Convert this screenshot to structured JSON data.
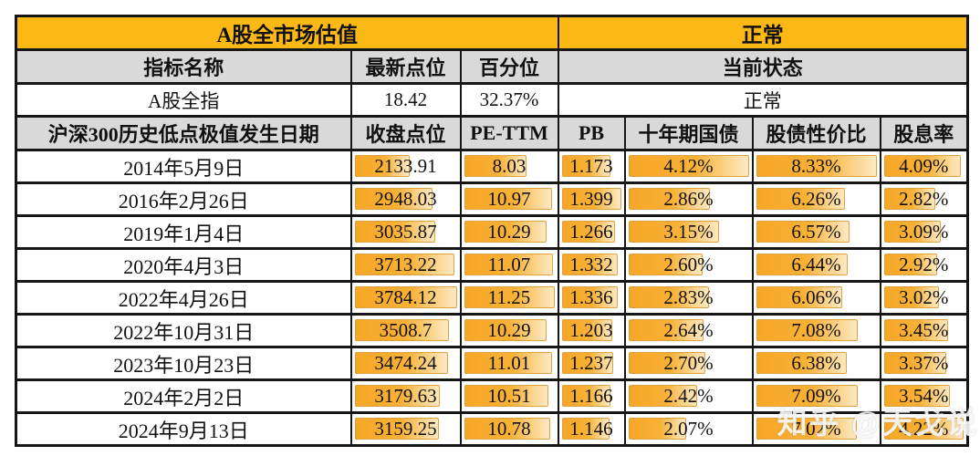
{
  "colors": {
    "header_orange": "#FCB814",
    "header_gray": "#D9D9D9",
    "bar_fill_start": "#F6A626",
    "bar_fill_end": "#FDE9C2",
    "bar_border": "#DFA042",
    "grid": "#161616"
  },
  "watermark": "知乎 @天戈说",
  "chart_data": {
    "type": "table",
    "title_row": {
      "left": "A股全市场估值",
      "right": "正常"
    },
    "meta_header": [
      "指标名称",
      "最新点位",
      "百分位",
      "当前状态"
    ],
    "meta_row": [
      "A股全指",
      "18.42",
      "32.37%",
      "正常"
    ],
    "columns": [
      "沪深300历史低点极值发生日期",
      "收盘点位",
      "PE-TTM",
      "PB",
      "十年期国债",
      "股债性价比",
      "股息率"
    ],
    "bar_scaling": "bar width = value / column max",
    "rows": [
      {
        "date": "2014年5月9日",
        "display": [
          "2133.91",
          "8.03",
          "1.173",
          "4.12%",
          "8.33%",
          "4.09%"
        ],
        "values": [
          2133.91,
          8.03,
          1.173,
          4.12,
          8.33,
          4.09
        ]
      },
      {
        "date": "2016年2月26日",
        "display": [
          "2948.03",
          "10.97",
          "1.399",
          "2.86%",
          "6.26%",
          "2.82%"
        ],
        "values": [
          2948.03,
          10.97,
          1.399,
          2.86,
          6.26,
          2.82
        ]
      },
      {
        "date": "2019年1月4日",
        "display": [
          "3035.87",
          "10.29",
          "1.266",
          "3.15%",
          "6.57%",
          "3.09%"
        ],
        "values": [
          3035.87,
          10.29,
          1.266,
          3.15,
          6.57,
          3.09
        ]
      },
      {
        "date": "2020年4月3日",
        "display": [
          "3713.22",
          "11.07",
          "1.332",
          "2.60%",
          "6.44%",
          "2.92%"
        ],
        "values": [
          3713.22,
          11.07,
          1.332,
          2.6,
          6.44,
          2.92
        ]
      },
      {
        "date": "2022年4月26日",
        "display": [
          "3784.12",
          "11.25",
          "1.336",
          "2.83%",
          "6.06%",
          "3.02%"
        ],
        "values": [
          3784.12,
          11.25,
          1.336,
          2.83,
          6.06,
          3.02
        ]
      },
      {
        "date": "2022年10月31日",
        "display": [
          "3508.7",
          "10.29",
          "1.203",
          "2.64%",
          "7.08%",
          "3.45%"
        ],
        "values": [
          3508.7,
          10.29,
          1.203,
          2.64,
          7.08,
          3.45
        ]
      },
      {
        "date": "2023年10月23日",
        "display": [
          "3474.24",
          "11.01",
          "1.237",
          "2.70%",
          "6.38%",
          "3.37%"
        ],
        "values": [
          3474.24,
          11.01,
          1.237,
          2.7,
          6.38,
          3.37
        ]
      },
      {
        "date": "2024年2月2日",
        "display": [
          "3179.63",
          "10.51",
          "1.166",
          "2.42%",
          "7.09%",
          "3.54%"
        ],
        "values": [
          3179.63,
          10.51,
          1.166,
          2.42,
          7.09,
          3.54
        ]
      },
      {
        "date": "2024年9月13日",
        "display": [
          "3159.25",
          "10.78",
          "1.146",
          "2.07%",
          "7.02%",
          "4.22%"
        ],
        "values": [
          3159.25,
          10.78,
          1.146,
          2.07,
          7.02,
          4.22
        ]
      }
    ]
  }
}
